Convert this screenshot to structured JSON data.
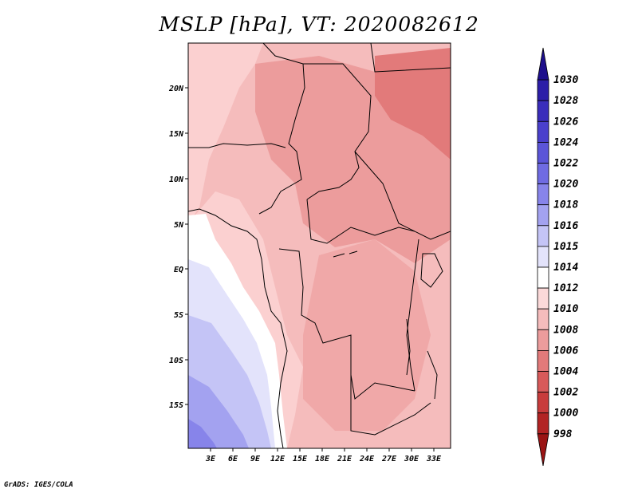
{
  "title": "MSLP [hPa], VT: 2020082612",
  "credit": "GrADS: IGES/COLA",
  "lat_labels": [
    "20N",
    "15N",
    "10N",
    "5N",
    "EQ",
    "5S",
    "10S",
    "15S"
  ],
  "lon_labels": [
    "3E",
    "6E",
    "9E",
    "12E",
    "15E",
    "18E",
    "21E",
    "24E",
    "27E",
    "30E",
    "33E"
  ],
  "colorbar": {
    "labels": [
      "1030",
      "1028",
      "1026",
      "1024",
      "1022",
      "1020",
      "1018",
      "1016",
      "1015",
      "1014",
      "1012",
      "1010",
      "1008",
      "1006",
      "1004",
      "1002",
      "1000",
      "998"
    ],
    "colors": [
      "#1e0f8c",
      "#2c1ea8",
      "#3a2dbb",
      "#4a40cc",
      "#5b55d8",
      "#6f6be2",
      "#8784ea",
      "#a3a2f0",
      "#c4c4f6",
      "#e3e3fb",
      "#ffffff",
      "#fbd9d9",
      "#f5bcbc",
      "#ec9c9c",
      "#e27a7a",
      "#d85a5a",
      "#c83c3c",
      "#b22424",
      "#9a1414"
    ]
  },
  "map_shading": {
    "north_lowest_pressure_hPa": 1006,
    "north_typical_pressure_hPa": 1008,
    "central_pressure_hPa": 1010,
    "southwest_atlantic_max_hPa": 1018
  }
}
